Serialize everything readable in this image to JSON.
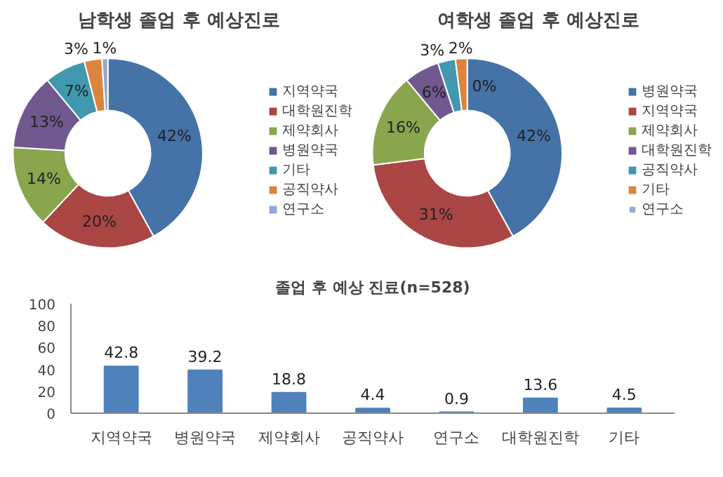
{
  "chart_data": [
    {
      "type": "donut",
      "title": "남학생 졸업 후 예상진로",
      "categories": [
        "지역약국",
        "대학원진학",
        "제약회사",
        "병원약국",
        "기타",
        "공직약사",
        "연구소"
      ],
      "values": [
        42,
        20,
        14,
        13,
        7,
        3,
        1
      ],
      "value_labels": [
        "42%",
        "20%",
        "14%",
        "13%",
        "7%",
        "3%",
        "1%"
      ],
      "colors": [
        "#4572a7",
        "#aa4643",
        "#89a54e",
        "#71588f",
        "#4198af",
        "#db843d",
        "#93a9cf"
      ],
      "data_labels": true,
      "legend": "right"
    },
    {
      "type": "donut",
      "title": "여학생 졸업 후 예상진로",
      "categories": [
        "병원약국",
        "지역약국",
        "제약회사",
        "대학원진학",
        "공직약사",
        "기타",
        "연구소"
      ],
      "values": [
        42,
        31,
        16,
        6,
        3,
        2,
        0
      ],
      "value_labels": [
        "42%",
        "31%",
        "16%",
        "6%",
        "3%",
        "2%",
        "0%"
      ],
      "colors": [
        "#4572a7",
        "#aa4643",
        "#89a54e",
        "#71588f",
        "#4198af",
        "#db843d",
        "#93a9cf"
      ],
      "data_labels": true,
      "legend": "right"
    },
    {
      "type": "bar",
      "title": "졸업 후 예상 진료(n=528)",
      "categories": [
        "지역약국",
        "병원약국",
        "제약회사",
        "공직약사",
        "연구소",
        "대학원진학",
        "기타"
      ],
      "values": [
        42.8,
        39.2,
        18.8,
        4.4,
        0.9,
        13.6,
        4.5
      ],
      "color": "#4f81bd",
      "ylim": [
        0,
        100
      ],
      "yticks": [
        0,
        20,
        40,
        60,
        80,
        100
      ],
      "data_labels": true,
      "grid": false
    }
  ]
}
